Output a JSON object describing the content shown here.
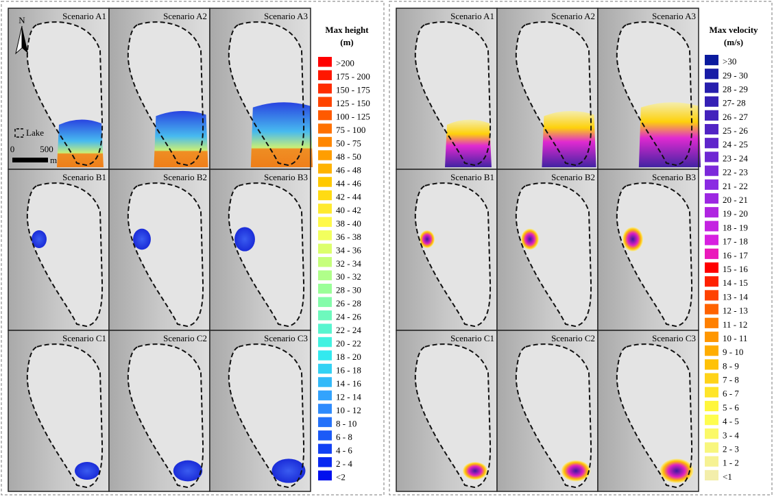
{
  "left": {
    "panels": [
      "Scenario A1",
      "Scenario A2",
      "Scenario A3",
      "Scenario B1",
      "Scenario B2",
      "Scenario B3",
      "Scenario C1",
      "Scenario C2",
      "Scenario C3"
    ],
    "legend": {
      "title": [
        "Max height",
        "(m)"
      ],
      "items": [
        ">200",
        "175 - 200",
        "150 - 175",
        "125 - 150",
        "100 - 125",
        "75 - 100",
        "50 - 75",
        "48 - 50",
        "46 - 48",
        "44 - 46",
        "42 - 44",
        "40 - 42",
        "38 - 40",
        "36 - 38",
        "34 - 36",
        "32 - 34",
        "30 - 32",
        "28 - 30",
        "26 - 28",
        "24 - 26",
        "22 - 24",
        "20 - 22",
        "18 - 20",
        "16 - 18",
        "14 - 16",
        "12 - 14",
        "10 - 12",
        "8 - 10",
        "6 - 8",
        "4 - 6",
        "2 - 4",
        "<2"
      ]
    },
    "north": "N",
    "lake_label": "Lake",
    "scale": {
      "ticks": [
        "0",
        "500"
      ],
      "unit": "m"
    }
  },
  "right": {
    "panels": [
      "Scenario A1",
      "Scenario A2",
      "Scenario A3",
      "Scenario B1",
      "Scenario B2",
      "Scenario B3",
      "Scenario C1",
      "Scenario C2",
      "Scenario C3"
    ],
    "legend": {
      "title": [
        "Max velocity",
        "(m/s)"
      ],
      "items": [
        ">30",
        "29 - 30",
        "28 - 29",
        "27- 28",
        "26 - 27",
        "25 - 26",
        "24 - 25",
        "23 - 24",
        "22 - 23",
        "21 - 22",
        "20 - 21",
        "19 - 20",
        "18 - 19",
        "17 - 18",
        "16 - 17",
        "15 - 16",
        "14 - 15",
        "13 - 14",
        "12 - 13",
        "11 - 12",
        "10 - 11",
        "9 - 10",
        "8 - 9",
        "7 - 8",
        "6 - 7",
        "5 - 6",
        "4 - 5",
        "3 - 4",
        "2 - 3",
        "1 - 2",
        "<1"
      ]
    }
  }
}
